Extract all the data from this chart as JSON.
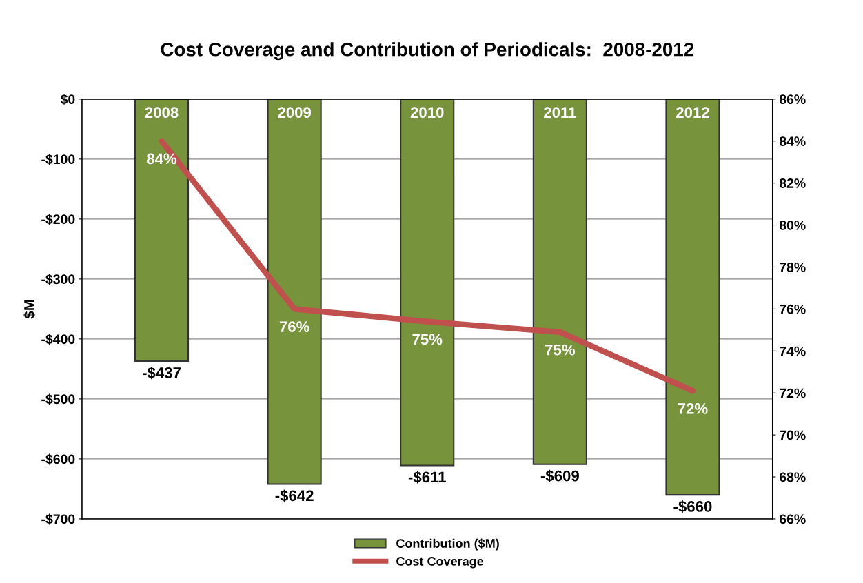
{
  "chart_data": {
    "type": "bar",
    "title": "Cost Coverage and Contribution of Periodicals:  2008-2012",
    "ylabel": "$M",
    "categories": [
      "2008",
      "2009",
      "2010",
      "2011",
      "2012"
    ],
    "series": [
      {
        "name": "Contribution ($M)",
        "color": "#77933c",
        "values": [
          -437,
          -642,
          -611,
          -609,
          -660
        ],
        "value_labels": [
          "-$437",
          "-$642",
          "-$611",
          "-$609",
          "-$660"
        ]
      },
      {
        "name": "Cost Coverage",
        "type": "line",
        "axis": "y2",
        "color": "#c0504d",
        "values": [
          84,
          76,
          75.4,
          74.9,
          72.1
        ],
        "value_labels": [
          "84%",
          "76%",
          "75%",
          "75%",
          "72%"
        ]
      }
    ],
    "ylim": [
      -700,
      0
    ],
    "yticks": [
      {
        "value": -700,
        "label": "-$700"
      },
      {
        "value": -600,
        "label": "-$600"
      },
      {
        "value": -500,
        "label": "-$500"
      },
      {
        "value": -400,
        "label": "-$400"
      },
      {
        "value": -300,
        "label": "-$300"
      },
      {
        "value": -200,
        "label": "-$200"
      },
      {
        "value": -100,
        "label": "-$100"
      },
      {
        "value": 0,
        "label": "$0"
      }
    ],
    "y2lim": [
      66,
      86
    ],
    "y2ticks": [
      {
        "value": 66,
        "label": "66%"
      },
      {
        "value": 68,
        "label": "68%"
      },
      {
        "value": 70,
        "label": "70%"
      },
      {
        "value": 72,
        "label": "72%"
      },
      {
        "value": 74,
        "label": "74%"
      },
      {
        "value": 76,
        "label": "76%"
      },
      {
        "value": 78,
        "label": "78%"
      },
      {
        "value": 80,
        "label": "80%"
      },
      {
        "value": 82,
        "label": "82%"
      },
      {
        "value": 84,
        "label": "84%"
      },
      {
        "value": 86,
        "label": "86%"
      }
    ],
    "grid": "y",
    "legend": "bottom",
    "marker": "none",
    "line_style": "solid"
  }
}
